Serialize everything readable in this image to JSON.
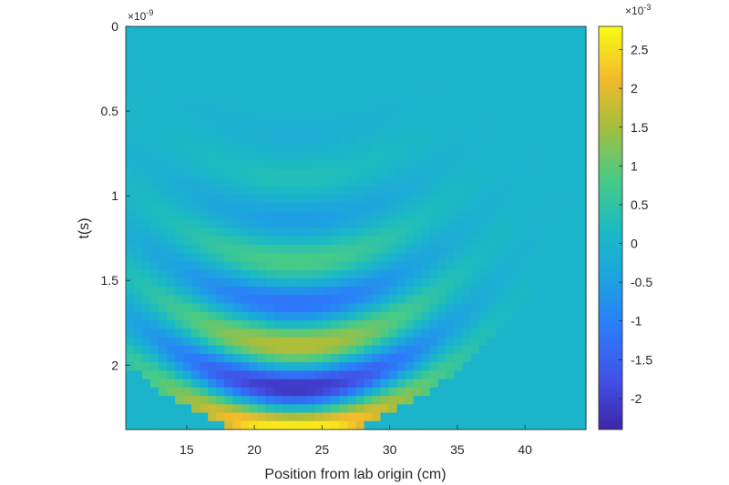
{
  "chart_data": {
    "type": "heatmap",
    "title": "",
    "xlabel": "Position from lab origin (cm)",
    "ylabel": "t(s)",
    "xlim": [
      10.5,
      44.5
    ],
    "ylim": [
      0,
      2.38e-09
    ],
    "y_direction": "reversed",
    "x_ticks": [
      15,
      20,
      25,
      30,
      35,
      40
    ],
    "x_tick_labels": [
      "15",
      "20",
      "25",
      "30",
      "35",
      "40"
    ],
    "y_ticks": [
      0,
      0.5,
      1,
      1.5,
      2
    ],
    "y_tick_labels": [
      "0",
      "0.5",
      "1",
      "1.5",
      "2"
    ],
    "y_exponent_label": "×10^-9",
    "colorbar": {
      "clim": [
        -0.0024,
        0.0028
      ],
      "ticks": [
        2.5,
        2,
        1.5,
        1,
        0.5,
        0,
        -0.5,
        -1,
        -1.5,
        -2
      ],
      "tick_labels": [
        "2.5",
        "2",
        "1.5",
        "1",
        "0.5",
        "0",
        "-0.5",
        "-1",
        "-1.5",
        "-2"
      ],
      "exponent_label": "×10^-3",
      "colormap": "parula"
    },
    "field": {
      "description_free": true,
      "center_x_cm": 23,
      "wavefront_curvature": 0.0012,
      "wave_period_s": 5e-10,
      "peak_value": 0.0028,
      "grid": {
        "nx": 56,
        "ny": 48
      }
    },
    "grid": false
  }
}
